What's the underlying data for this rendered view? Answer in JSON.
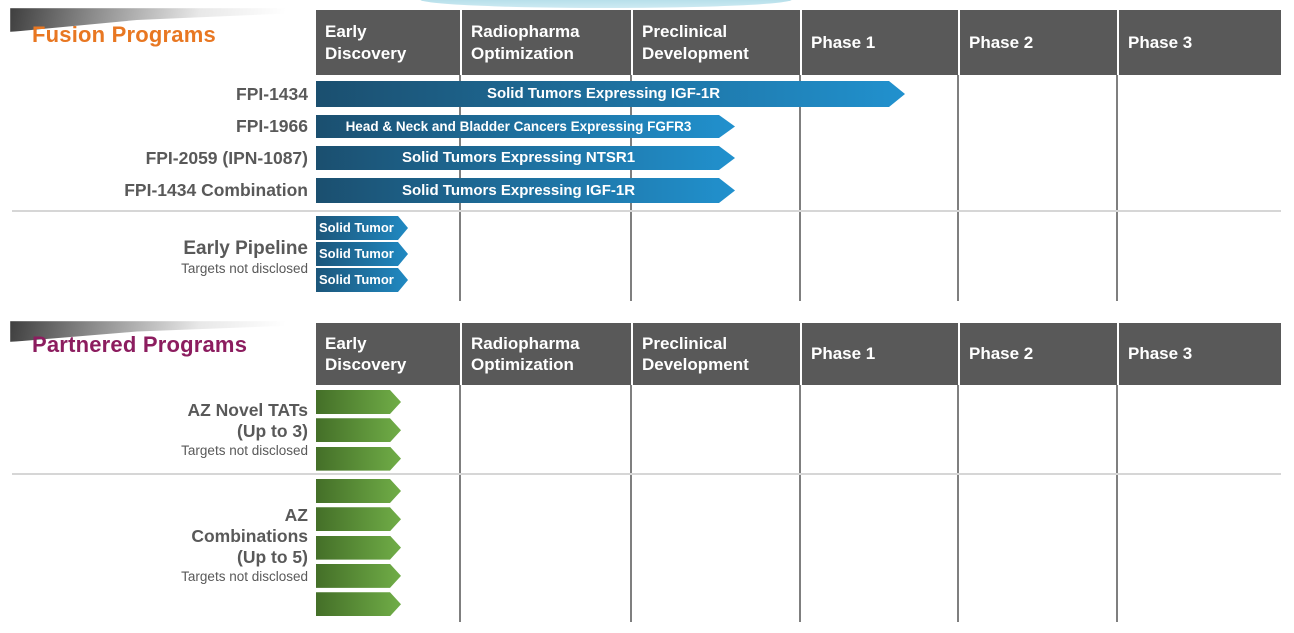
{
  "fusion": {
    "title": "Fusion Programs",
    "columns": [
      "Early Discovery",
      "Radiopharma Optimization",
      "Preclinical Development",
      "Phase 1",
      "Phase 2",
      "Phase 3"
    ],
    "rows": [
      {
        "label": "FPI-1434",
        "bar_label": "Solid Tumors Expressing IGF-1R"
      },
      {
        "label": "FPI-1966",
        "bar_label": "Head & Neck and Bladder Cancers Expressing FGFR3"
      },
      {
        "label": "FPI-2059 (IPN-1087)",
        "bar_label": "Solid Tumors Expressing NTSR1"
      },
      {
        "label": "FPI-1434 Combination",
        "bar_label": "Solid Tumors Expressing IGF-1R"
      }
    ],
    "early_pipeline": {
      "label": "Early Pipeline",
      "sublabel": "Targets not disclosed",
      "arrows": [
        "Solid Tumor",
        "Solid Tumor",
        "Solid Tumor"
      ]
    }
  },
  "partnered": {
    "title": "Partnered Programs",
    "columns": [
      "Early Discovery",
      "Radiopharma Optimization",
      "Preclinical Development",
      "Phase 1",
      "Phase 2",
      "Phase 3"
    ],
    "groups": [
      {
        "line1": "AZ Novel TATs",
        "line2": "(Up to 3)",
        "sublabel": "Targets not disclosed",
        "arrow_count": 3
      },
      {
        "line1": "AZ",
        "line2": "Combinations",
        "line3": "(Up to 5)",
        "sublabel": "Targets not disclosed",
        "arrow_count": 5
      }
    ]
  },
  "colors": {
    "fusion_title": "#E87722",
    "partnered_title": "#8C1D5F",
    "header_bg": "#595959",
    "header_text": "#FFFFFF",
    "label_text": "#595959",
    "bar_blue_start": "#1B4F6F",
    "bar_blue_end": "#2191CE",
    "arrow_green_start": "#446F28",
    "arrow_green_end": "#70AD47"
  },
  "chart_data": {
    "type": "bar",
    "title": "Drug development pipeline by stage",
    "stage_axis": [
      "Early Discovery",
      "Radiopharma Optimization",
      "Preclinical Development",
      "Phase 1",
      "Phase 2",
      "Phase 3"
    ],
    "legend_position": "none",
    "grid": "vertical stage gridlines",
    "sections": [
      {
        "name": "Fusion Programs",
        "programs": [
          {
            "program": "FPI-1434",
            "indication": "Solid Tumors Expressing IGF-1R",
            "stage_reached": "Phase 1",
            "stage_fraction": 3.65
          },
          {
            "program": "FPI-1966",
            "indication": "Head & Neck and Bladder Cancers Expressing FGFR3",
            "stage_reached": "Preclinical Development",
            "stage_fraction": 2.6
          },
          {
            "program": "FPI-2059 (IPN-1087)",
            "indication": "Solid Tumors Expressing NTSR1",
            "stage_reached": "Preclinical Development",
            "stage_fraction": 2.6
          },
          {
            "program": "FPI-1434 Combination",
            "indication": "Solid Tumors Expressing IGF-1R",
            "stage_reached": "Preclinical Development",
            "stage_fraction": 2.6
          },
          {
            "program": "Early Pipeline",
            "indication": "Solid Tumor",
            "program_count": 3,
            "stage_reached": "Early Discovery",
            "stage_fraction": 0.6,
            "note": "Targets not disclosed"
          }
        ]
      },
      {
        "name": "Partnered Programs",
        "programs": [
          {
            "program": "AZ Novel TATs (Up to 3)",
            "program_count": 3,
            "stage_reached": "Early Discovery",
            "stage_fraction": 0.6,
            "note": "Targets not disclosed"
          },
          {
            "program": "AZ Combinations (Up to 5)",
            "program_count": 5,
            "stage_reached": "Early Discovery",
            "stage_fraction": 0.6,
            "note": "Targets not disclosed"
          }
        ]
      }
    ]
  }
}
